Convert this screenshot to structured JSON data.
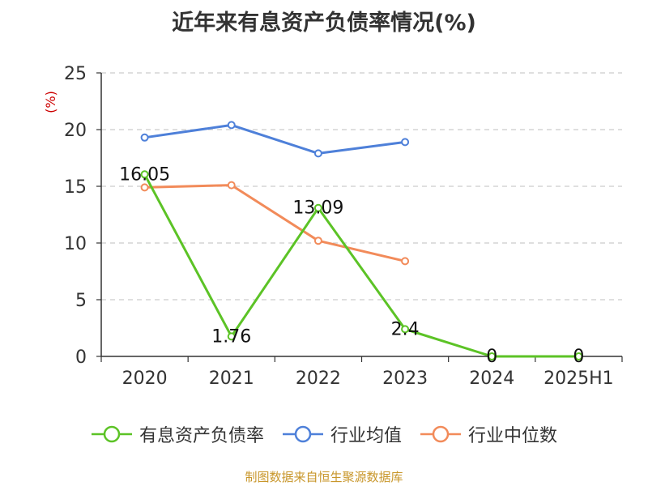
{
  "title": "近年来有息资产负债率情况(%)",
  "footer": "制图数据来自恒生聚源数据库",
  "chart_data": {
    "type": "line",
    "categories": [
      "2020",
      "2021",
      "2022",
      "2023",
      "2024",
      "2025H1"
    ],
    "ylabel": "(%)",
    "ylim": [
      0,
      25
    ],
    "yticks": [
      0,
      5,
      10,
      15,
      20,
      25
    ],
    "grid": true,
    "legend_position": "bottom",
    "series": [
      {
        "name": "有息资产负债率",
        "color": "#5cc326",
        "values": [
          16.05,
          1.76,
          13.09,
          2.4,
          0,
          0
        ],
        "labels": [
          "16.05",
          "1.76",
          "13.09",
          "2.4",
          "0",
          "0"
        ]
      },
      {
        "name": "行业均值",
        "color": "#4e80d9",
        "values": [
          19.3,
          20.4,
          17.9,
          18.9,
          null,
          null
        ]
      },
      {
        "name": "行业中位数",
        "color": "#f28b5a",
        "values": [
          14.9,
          15.1,
          10.2,
          8.4,
          null,
          null
        ]
      }
    ]
  }
}
